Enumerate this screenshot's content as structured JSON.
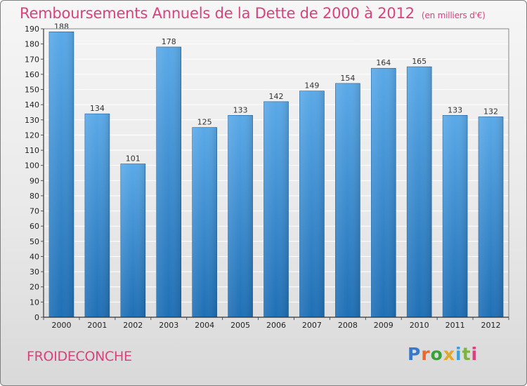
{
  "title": "Remboursements Annuels de la Dette de 2000 à 2012",
  "unit_note": "(en milliers d'€)",
  "footer": {
    "commune": "FROIDECONCHE"
  },
  "logo": {
    "letters": [
      "P",
      "r",
      "o",
      "x",
      "i",
      "t",
      "i"
    ],
    "colors": [
      "#3a78c9",
      "#e8692b",
      "#3aa13a",
      "#e1a72a",
      "#3aa0d9",
      "#7cb342",
      "#d9437c"
    ]
  },
  "colors": {
    "accent": "#d9437c",
    "bar_light": "#5aa9e8",
    "bar_dark": "#1f6fb5"
  },
  "chart_data": {
    "type": "bar",
    "categories": [
      "2000",
      "2001",
      "2002",
      "2003",
      "2004",
      "2005",
      "2006",
      "2007",
      "2008",
      "2009",
      "2010",
      "2011",
      "2012"
    ],
    "values": [
      188,
      134,
      101,
      178,
      125,
      133,
      142,
      149,
      154,
      164,
      165,
      133,
      132
    ],
    "title": "Remboursements Annuels de la Dette de 2000 à 2012",
    "xlabel": "",
    "ylabel": "",
    "ylim": [
      0,
      190
    ],
    "yticks": [
      0,
      10,
      20,
      30,
      40,
      50,
      60,
      70,
      80,
      90,
      100,
      110,
      120,
      130,
      140,
      150,
      160,
      170,
      180,
      190
    ],
    "grid": true,
    "data_labels": true
  }
}
